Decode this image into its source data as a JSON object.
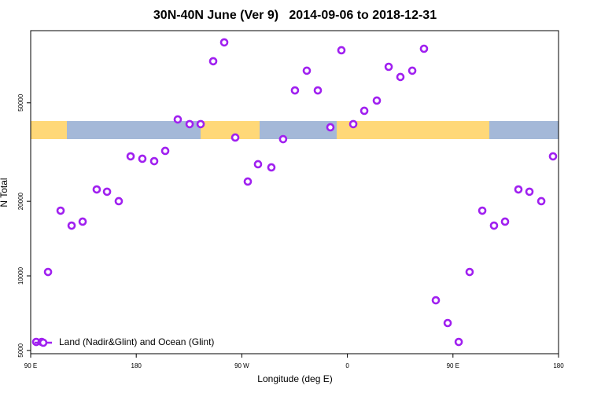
{
  "chart_data": {
    "type": "scatter",
    "title": "30N-40N June (Ver 9)   2014-09-06 to 2018-12-31",
    "x_label": "Longitude (deg E)",
    "y_label": "N Total",
    "xlim": [
      90,
      540
    ],
    "xticks": [
      {
        "value": 90,
        "label": "90 E"
      },
      180,
      {
        "value": 270,
        "label": "90 W"
      },
      {
        "value": 360,
        "label": "0"
      },
      {
        "value": 450,
        "label": "90 E"
      },
      {
        "value": 540,
        "label": "180"
      }
    ],
    "ylim": [
      4850,
      97800
    ],
    "ylog": true,
    "yticks": [
      5000,
      10000,
      20000,
      50000
    ],
    "legend": "bottom-left",
    "series": [
      {
        "name": "Land (Nadir&Glint) and Ocean (Glint)",
        "color": "#a020f0",
        "x": [
          94.7,
          99.4,
          104.8,
          115.5,
          124.9,
          134.3,
          146.3,
          155.1,
          165.1,
          175.2,
          185.2,
          195.3,
          204.7,
          215.4,
          225.5,
          234.9,
          245.6,
          255.0,
          264.4,
          275.1,
          283.8,
          295.2,
          305.2,
          315.3,
          325.4,
          334.8,
          345.5,
          354.9,
          365.0,
          374.4,
          385.1,
          395.2,
          405.2,
          415.3,
          425.3,
          435.4,
          445.5,
          454.9,
          464.2,
          475.0,
          485.0,
          494.4,
          505.8,
          515.2,
          525.3,
          535.3
        ],
        "values": [
          5410,
          5410,
          10370,
          18340,
          15960,
          16560,
          22340,
          21870,
          20030,
          30390,
          29720,
          29060,
          31970,
          42840,
          41010,
          41010,
          73600,
          87700,
          36200,
          24040,
          28240,
          27420,
          35660,
          56110,
          67400,
          56110,
          39810,
          81500,
          41010,
          46420,
          51050,
          69880,
          63570,
          67400,
          82660,
          7970,
          6450,
          5410,
          10370,
          18340,
          15960,
          16560,
          22340,
          21870,
          20030,
          30390
        ]
      }
    ]
  }
}
